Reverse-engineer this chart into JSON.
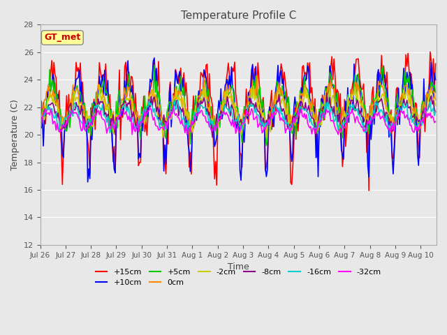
{
  "title": "Temperature Profile C",
  "xlabel": "Time",
  "ylabel": "Temperature (C)",
  "ylim": [
    12,
    28
  ],
  "xlim": [
    0,
    375
  ],
  "background_color": "#e8e8e8",
  "plot_background": "#e8e8e8",
  "grid_color": "white",
  "series": {
    "+15cm": {
      "color": "#ff0000",
      "lw": 1.2
    },
    "+10cm": {
      "color": "#0000ff",
      "lw": 1.2
    },
    "+5cm": {
      "color": "#00cc00",
      "lw": 1.2
    },
    "0cm": {
      "color": "#ff8800",
      "lw": 1.2
    },
    "-2cm": {
      "color": "#cccc00",
      "lw": 1.2
    },
    "-8cm": {
      "color": "#880088",
      "lw": 1.2
    },
    "-16cm": {
      "color": "#00cccc",
      "lw": 1.2
    },
    "-32cm": {
      "color": "#ff00ff",
      "lw": 1.2
    }
  },
  "xtick_labels": [
    "Jul 26",
    "Jul 27",
    "Jul 28",
    "Jul 29",
    "Jul 30",
    "Jul 31",
    "Aug 1",
    "Aug 2",
    "Aug 3",
    "Aug 4",
    "Aug 5",
    "Aug 6",
    "Aug 7",
    "Aug 8",
    "Aug 9",
    "Aug 10"
  ],
  "xtick_positions": [
    0,
    24,
    48,
    72,
    96,
    120,
    144,
    168,
    192,
    216,
    240,
    264,
    288,
    312,
    336,
    360
  ],
  "gt_met_label": "GT_met",
  "gt_met_color": "#cc0000",
  "gt_met_bg": "#ffff99"
}
